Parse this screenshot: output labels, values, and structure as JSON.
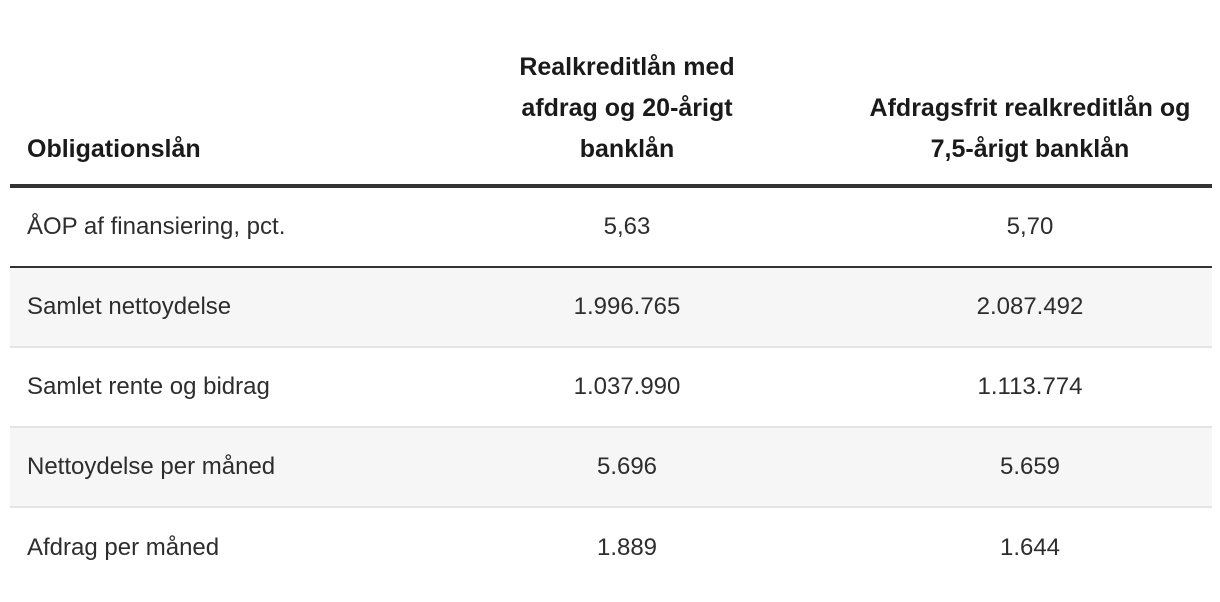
{
  "table": {
    "header": {
      "col1": "Obligationslån",
      "col2": "Realkreditlån med afdrag og 20-årigt banklån",
      "col3": "Afdragsfrit realkreditlån og 7,5-årigt banklån"
    },
    "rows": [
      {
        "label": "ÅOP af finansiering, pct.",
        "v1": "5,63",
        "v2": "5,70"
      },
      {
        "label": "Samlet nettoydelse",
        "v1": "1.996.765",
        "v2": "2.087.492"
      },
      {
        "label": "Samlet rente og bidrag",
        "v1": "1.037.990",
        "v2": "1.113.774"
      },
      {
        "label": "Nettoydelse per måned",
        "v1": "5.696",
        "v2": "5.659"
      },
      {
        "label": "Afdrag per måned",
        "v1": "1.889",
        "v2": "1.644"
      }
    ],
    "colors": {
      "header_border": "#333333",
      "first_row_border": "#333333",
      "row_divider": "#e4e4e4",
      "stripe_background": "#f6f6f6",
      "header_text": "#1a1a1a",
      "body_text": "#2d2d2d",
      "page_background": "#ffffff"
    }
  },
  "chart_data": {
    "type": "table",
    "title": "Obligationslån",
    "columns": [
      "Obligationslån",
      "Realkreditlån med afdrag og 20-årigt banklån",
      "Afdragsfrit realkreditlån og 7,5-årigt banklån"
    ],
    "rows": [
      [
        "ÅOP af finansiering, pct.",
        "5,63",
        "5,70"
      ],
      [
        "Samlet nettoydelse",
        "1.996.765",
        "2.087.492"
      ],
      [
        "Samlet rente og bidrag",
        "1.037.990",
        "1.113.774"
      ],
      [
        "Nettoydelse per måned",
        "5.696",
        "5.659"
      ],
      [
        "Afdrag per måned",
        "1.889",
        "1.644"
      ]
    ],
    "numeric_values": {
      "aop_pct": [
        5.63,
        5.7
      ],
      "samlet_nettoydelse": [
        1996765,
        2087492
      ],
      "samlet_rente_og_bidrag": [
        1037990,
        1113774
      ],
      "nettoydelse_per_maaned": [
        5696,
        5659
      ],
      "afdrag_per_maaned": [
        1889,
        1644
      ]
    },
    "layout_hints": {
      "zebra_striping": true,
      "striped_row_indexes": [
        1,
        3
      ],
      "thick_rule_under_header": true,
      "dark_rule_under_first_row": true,
      "value_alignment": "center",
      "label_alignment": "left"
    }
  }
}
